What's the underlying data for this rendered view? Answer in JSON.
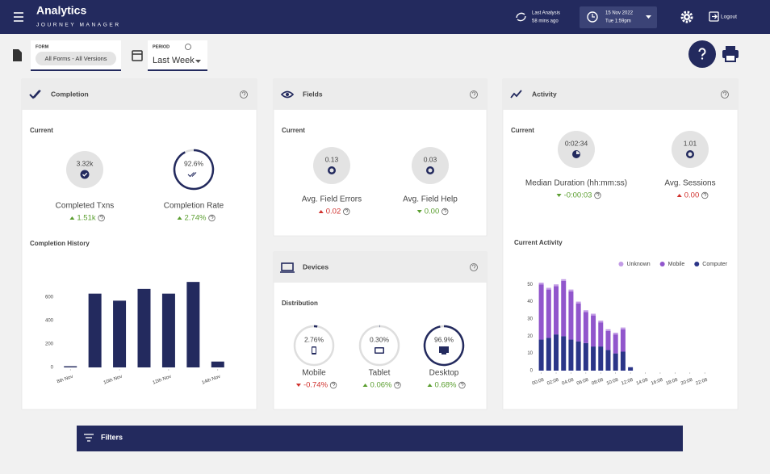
{
  "header": {
    "title": "Analytics",
    "subtitle": "JOURNEY MANAGER",
    "last_analysis": "Last Analysis",
    "last_analysis_time": "58 mins ago",
    "date": "15 Nov 2022",
    "time": "Tue 1:59pm",
    "logout": "Logout"
  },
  "toolbar": {
    "form_label": "FORM",
    "form_value": "All Forms - All Versions",
    "period_label": "PERIOD",
    "period_value": "Last Week"
  },
  "cards": {
    "completion": {
      "title": "Completion",
      "section": "Current",
      "metrics": [
        {
          "value": "3.32k",
          "label": "Completed Txns",
          "change": "1.51k",
          "trend": "up",
          "good": true
        },
        {
          "value": 92.6,
          "value_label": "92.6%",
          "label": "Completion Rate",
          "change": "2.74%",
          "trend": "up",
          "good": true
        }
      ]
    },
    "fields": {
      "title": "Fields",
      "section": "Current",
      "metrics": [
        {
          "value": "0.13",
          "label": "Avg. Field Errors",
          "change": "0.02",
          "trend": "up",
          "good": false
        },
        {
          "value": "0.03",
          "label": "Avg. Field Help",
          "change": "0.00",
          "trend": "down",
          "good": true
        }
      ]
    },
    "devices": {
      "title": "Devices",
      "section": "Distribution",
      "metrics": [
        {
          "value": 2.76,
          "value_label": "2.76%",
          "label": "Mobile",
          "change": "-0.74%",
          "trend": "down",
          "good": false
        },
        {
          "value": 0.3,
          "value_label": "0.30%",
          "label": "Tablet",
          "change": "0.06%",
          "trend": "up",
          "good": true
        },
        {
          "value": 96.9,
          "value_label": "96.9%",
          "label": "Desktop",
          "change": "0.68%",
          "trend": "up",
          "good": true
        }
      ]
    },
    "activity": {
      "title": "Activity",
      "section": "Current",
      "metrics": [
        {
          "value": "0:02:34",
          "label": "Median Duration (hh:mm:ss)",
          "change": "-0:00:03",
          "trend": "down",
          "good": true
        },
        {
          "value": "1.01",
          "label": "Avg. Sessions",
          "change": "0.00",
          "trend": "up",
          "good": false
        }
      ]
    }
  },
  "chart_data": [
    {
      "type": "bar",
      "title": "Completion History",
      "categories": [
        "8th Nov",
        null,
        "10th Nov",
        null,
        "12th Nov",
        null,
        "14th Nov"
      ],
      "values": [
        10,
        630,
        570,
        670,
        630,
        730,
        50
      ],
      "color": "#232a5e",
      "ylim": [
        0,
        800
      ],
      "yticks": [
        0,
        200,
        400,
        600
      ]
    },
    {
      "type": "bar",
      "stacked": true,
      "title": "Current Activity",
      "categories": [
        "00:08",
        null,
        "02:08",
        null,
        "04:08",
        null,
        "06:08",
        null,
        "08:08",
        null,
        "10:08",
        null,
        "12:08",
        null,
        "14:08",
        null,
        "16:08",
        null,
        "18:08",
        null,
        "20:08",
        null,
        "22:08",
        null
      ],
      "series": [
        {
          "name": "Unknown",
          "color": "#c29be6",
          "values": [
            1,
            1,
            1,
            1,
            1,
            1,
            1,
            1,
            1,
            1,
            1,
            1,
            0,
            0,
            0,
            0,
            0,
            0,
            0,
            0,
            0,
            0,
            0,
            0
          ]
        },
        {
          "name": "Mobile",
          "color": "#9156cc",
          "values": [
            32,
            28,
            28,
            32,
            28,
            22,
            18,
            18,
            14,
            11,
            11,
            13,
            0,
            0,
            0,
            0,
            0,
            0,
            0,
            0,
            0,
            0,
            0,
            0
          ]
        },
        {
          "name": "Computer",
          "color": "#2b3588",
          "values": [
            18,
            19,
            21,
            20,
            18,
            17,
            16,
            14,
            14,
            12,
            10,
            11,
            2,
            0,
            0,
            0,
            0,
            0,
            0,
            0,
            0,
            0,
            0,
            0
          ]
        }
      ],
      "ylim": [
        0,
        55
      ],
      "yticks": [
        0,
        10,
        20,
        30,
        40,
        50
      ],
      "legend": "top-right"
    }
  ]
}
